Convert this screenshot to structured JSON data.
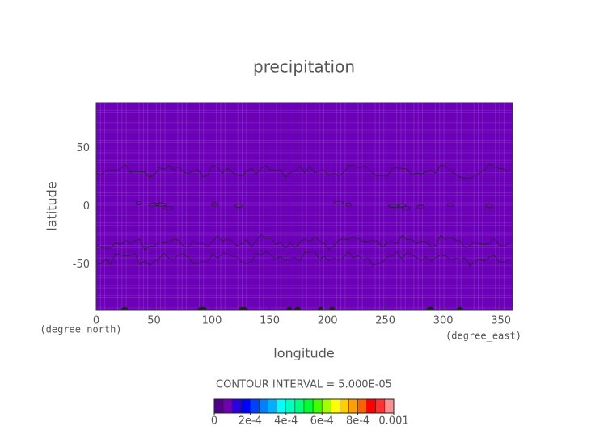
{
  "chart_data": {
    "type": "contour",
    "title": "precipitation",
    "x_label": "longitude",
    "y_label": "latitude",
    "x_unit": "(degree_east)",
    "y_unit": "(degree_north)",
    "xlim": [
      0,
      360
    ],
    "xticks": [
      0,
      50,
      100,
      150,
      200,
      250,
      300,
      350
    ],
    "ylim": [
      -89,
      89
    ],
    "yticks": [
      -50,
      0,
      50
    ],
    "field_color": "#6c00b8",
    "colorbar": {
      "title": "CONTOUR INTERVAL = 5.000E-05",
      "lim": [
        0,
        0.001
      ],
      "ticks": [
        0,
        {
          "value": 0.0002,
          "label": "2e-4"
        },
        {
          "value": 0.0004,
          "label": "4e-4"
        },
        {
          "value": 0.0006,
          "label": "6e-4"
        },
        {
          "value": 0.0008,
          "label": "8e-4"
        },
        0.001
      ],
      "colors": [
        "#50008c",
        "#7000b4",
        "#2a00e0",
        "#0000ff",
        "#0040ff",
        "#0080ff",
        "#00b0ff",
        "#00ffff",
        "#00ffc0",
        "#00ff80",
        "#00ff30",
        "#40ff00",
        "#a0ff00",
        "#ffff00",
        "#ffd000",
        "#ffa000",
        "#ff6000",
        "#ff0000",
        "#ff3030",
        "#ff9090"
      ]
    }
  }
}
